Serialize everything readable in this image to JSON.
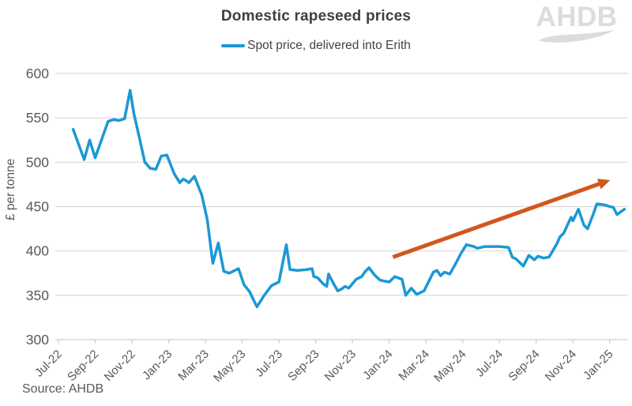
{
  "chart": {
    "title": "Domestic rapeseed prices",
    "legend_label": "Spot price, delivered into Erith",
    "source": "Source: AHDB"
  },
  "branding": {
    "logo_text": "AHDB"
  },
  "colors": {
    "series_blue": "#1b98d5",
    "arrow_orange": "#d2571d",
    "axis_text": "#595959",
    "title_text": "#3f3f3f",
    "gridline": "#d9d9d9",
    "tick": "#c9c9c9",
    "logo_gray": "#dcdcdc"
  },
  "chart_data": {
    "type": "line",
    "title": "Domestic rapeseed prices",
    "xlabel": "",
    "ylabel": "£ per tonne",
    "ylim": [
      300,
      600
    ],
    "ytick_step": 50,
    "ytick_labels": [
      "300",
      "350",
      "400",
      "450",
      "500",
      "550",
      "600"
    ],
    "x_unit": "months since Jul-22 (tick every 2 months)",
    "xlim": [
      0,
      31
    ],
    "x_tick_labels": [
      "Jul-22",
      "Sep-22",
      "Nov-22",
      "Jan-23",
      "Mar-23",
      "May-23",
      "Jul-23",
      "Sep-23",
      "Nov-23",
      "Jan-24",
      "Mar-24",
      "May-24",
      "Jul-24",
      "Sep-24",
      "Nov-24",
      "Jan-25"
    ],
    "grid": true,
    "legend_position": "top-center",
    "series": [
      {
        "name": "Spot price, delivered into Erith",
        "color": "#1b98d5",
        "points": [
          [
            0.8,
            537
          ],
          [
            1.4,
            503
          ],
          [
            1.7,
            525
          ],
          [
            2.0,
            505
          ],
          [
            2.7,
            546
          ],
          [
            3.0,
            548
          ],
          [
            3.3,
            547
          ],
          [
            3.6,
            549
          ],
          [
            3.9,
            581
          ],
          [
            4.1,
            555
          ],
          [
            4.4,
            528
          ],
          [
            4.7,
            500
          ],
          [
            5.0,
            493
          ],
          [
            5.3,
            492
          ],
          [
            5.6,
            507
          ],
          [
            5.9,
            508
          ],
          [
            6.3,
            487
          ],
          [
            6.6,
            477
          ],
          [
            6.8,
            481
          ],
          [
            7.1,
            477
          ],
          [
            7.4,
            484
          ],
          [
            7.8,
            463
          ],
          [
            8.1,
            435
          ],
          [
            8.4,
            386
          ],
          [
            8.7,
            409
          ],
          [
            9.0,
            377
          ],
          [
            9.3,
            375
          ],
          [
            9.8,
            380
          ],
          [
            10.1,
            362
          ],
          [
            10.4,
            354
          ],
          [
            10.8,
            337
          ],
          [
            11.2,
            350
          ],
          [
            11.6,
            361
          ],
          [
            12.0,
            365
          ],
          [
            12.4,
            407
          ],
          [
            12.6,
            379
          ],
          [
            13.0,
            378
          ],
          [
            13.5,
            379
          ],
          [
            13.8,
            380
          ],
          [
            13.9,
            371
          ],
          [
            14.1,
            370
          ],
          [
            14.4,
            363
          ],
          [
            14.6,
            360
          ],
          [
            14.7,
            374
          ],
          [
            15.0,
            362
          ],
          [
            15.2,
            355
          ],
          [
            15.4,
            357
          ],
          [
            15.6,
            360
          ],
          [
            15.8,
            358
          ],
          [
            16.2,
            368
          ],
          [
            16.5,
            371
          ],
          [
            16.7,
            377
          ],
          [
            16.9,
            381
          ],
          [
            17.2,
            373
          ],
          [
            17.5,
            367
          ],
          [
            18.0,
            365
          ],
          [
            18.3,
            371
          ],
          [
            18.7,
            368
          ],
          [
            18.9,
            350
          ],
          [
            19.2,
            358
          ],
          [
            19.5,
            351
          ],
          [
            19.9,
            355
          ],
          [
            20.4,
            376
          ],
          [
            20.6,
            378
          ],
          [
            20.8,
            372
          ],
          [
            21.0,
            376
          ],
          [
            21.3,
            374
          ],
          [
            21.6,
            385
          ],
          [
            21.9,
            397
          ],
          [
            22.2,
            407
          ],
          [
            22.6,
            405
          ],
          [
            22.8,
            403
          ],
          [
            23.2,
            405
          ],
          [
            24.0,
            405
          ],
          [
            24.5,
            404
          ],
          [
            24.7,
            393
          ],
          [
            24.9,
            391
          ],
          [
            25.3,
            383
          ],
          [
            25.6,
            395
          ],
          [
            25.9,
            390
          ],
          [
            26.1,
            394
          ],
          [
            26.4,
            392
          ],
          [
            26.7,
            393
          ],
          [
            27.1,
            407
          ],
          [
            27.3,
            416
          ],
          [
            27.5,
            420
          ],
          [
            27.9,
            438
          ],
          [
            28.0,
            434
          ],
          [
            28.3,
            447
          ],
          [
            28.6,
            429
          ],
          [
            28.8,
            425
          ],
          [
            29.1,
            441
          ],
          [
            29.3,
            453
          ],
          [
            29.7,
            452
          ],
          [
            30.0,
            450
          ],
          [
            30.2,
            449
          ],
          [
            30.4,
            441
          ],
          [
            30.8,
            447
          ]
        ]
      }
    ],
    "annotations": [
      {
        "type": "arrow",
        "color": "#d2571d",
        "from": [
          18.2,
          393
        ],
        "to": [
          29.5,
          476
        ],
        "meaning": "upward trend from Jan-24 to early 2025"
      }
    ]
  }
}
